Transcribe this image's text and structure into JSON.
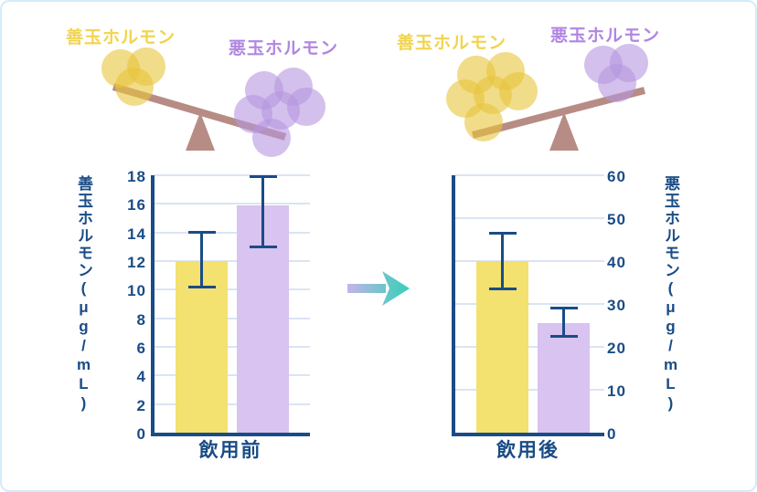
{
  "colors": {
    "navy": "#1a4c86",
    "grid_line": "#dbe4f4",
    "bar_yellow": "#f3e170",
    "bar_purple": "#d8c3f1",
    "label_yellow": "#f0d44e",
    "label_purple": "#b086e2",
    "seesaw_wood": "#b78c84",
    "ball_yellow": "#e8c53a",
    "ball_purple": "#b696e0",
    "arrow_from": "#c9b3ec",
    "arrow_to": "#2ed1b4",
    "card_border": "#d4ecf9"
  },
  "seesaws": [
    {
      "left_label": "善玉ホルモン",
      "right_label": "悪玉ホルモン",
      "left_balls": 3,
      "right_balls": 6,
      "heavier_side": "right"
    },
    {
      "left_label": "善玉ホルモン",
      "right_label": "悪玉ホルモン",
      "left_balls": 6,
      "right_balls": 3,
      "heavier_side": "left"
    }
  ],
  "arrow": {
    "direction": "right"
  },
  "chart_data": [
    {
      "type": "bar",
      "title": "",
      "xlabel": "飲用前",
      "ylabel": "善玉ホルモン(μg/mL)",
      "ylabel_side": "left",
      "ylim": [
        0,
        18
      ],
      "yticks": [
        0,
        2,
        4,
        6,
        8,
        10,
        12,
        14,
        16,
        18
      ],
      "grid": true,
      "categories": [
        "善玉ホルモン",
        "悪玉ホルモン"
      ],
      "values": [
        12,
        15.9
      ],
      "errors_low": [
        10.2,
        13
      ],
      "errors_high": [
        14,
        17.9
      ],
      "bar_colors": [
        "#f3e170",
        "#d8c3f1"
      ]
    },
    {
      "type": "bar",
      "title": "",
      "xlabel": "飲用後",
      "ylabel": "悪玉ホルモン(μg/mL)",
      "ylabel_side": "right",
      "ylim": [
        0,
        60
      ],
      "yticks": [
        0,
        10,
        20,
        30,
        40,
        50,
        60
      ],
      "grid": true,
      "categories": [
        "善玉ホルモン",
        "悪玉ホルモン"
      ],
      "values": [
        40,
        25.5
      ],
      "errors_low": [
        33.5,
        22.5
      ],
      "errors_high": [
        46.5,
        29
      ],
      "bar_colors": [
        "#f3e170",
        "#d8c3f1"
      ]
    }
  ]
}
